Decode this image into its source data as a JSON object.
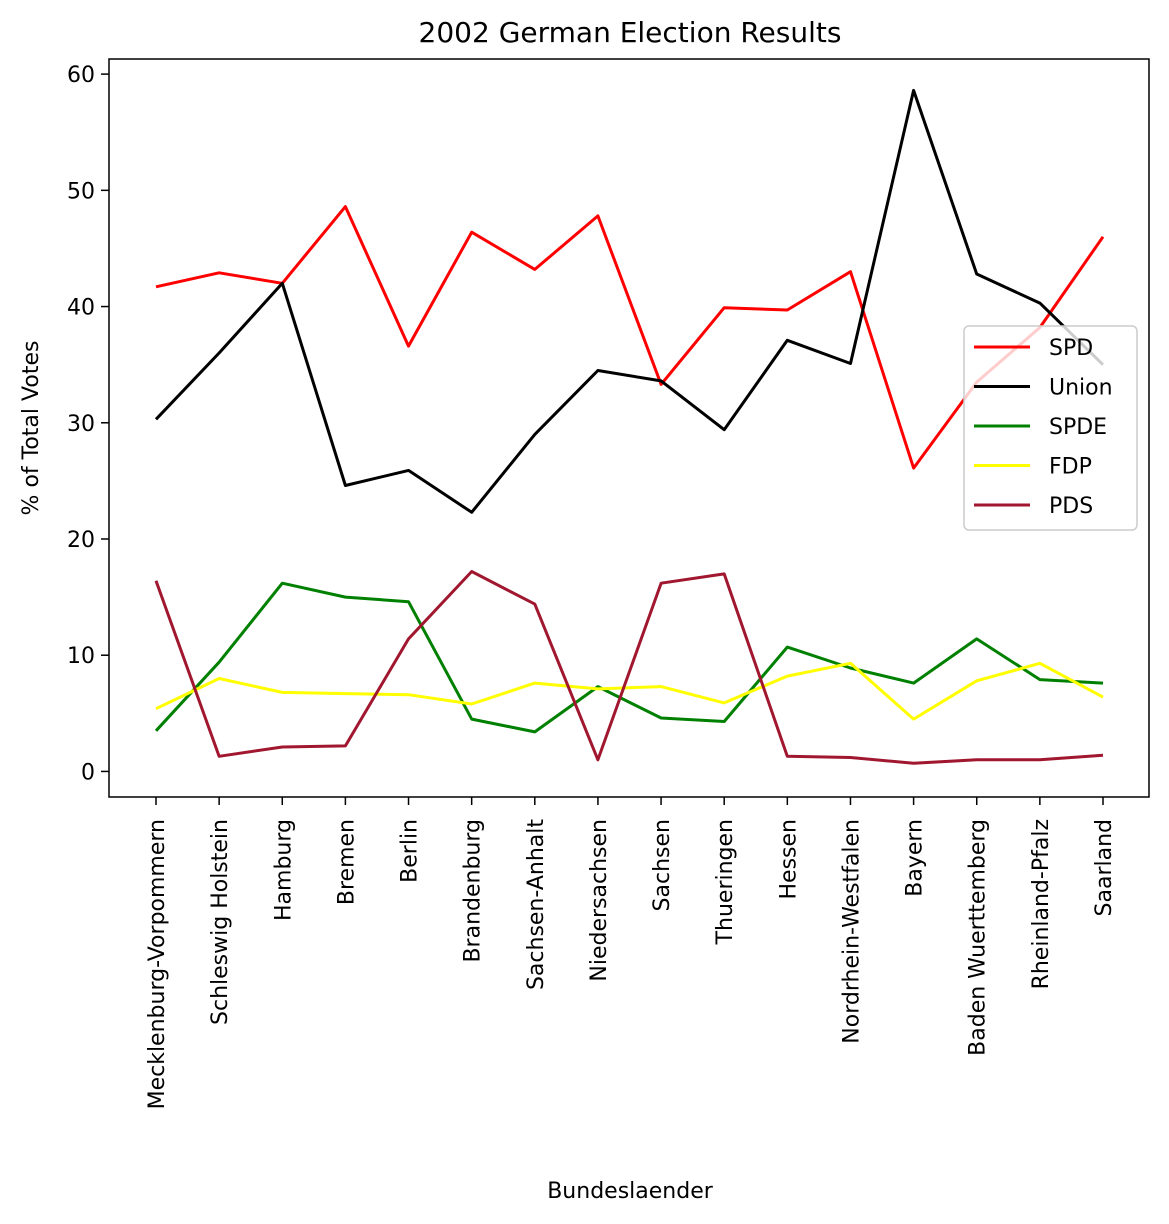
{
  "chart_data": {
    "type": "line",
    "title": "2002 German Election Results",
    "xlabel": "Bundeslaender",
    "ylabel": "% of Total Votes",
    "ylim": [
      -2.2,
      61.3
    ],
    "yticks": [
      0,
      10,
      20,
      30,
      40,
      50,
      60
    ],
    "grid": false,
    "legend_position": "center-right",
    "categories": [
      "Mecklenburg-Vorpommern",
      "Schleswig Holstein",
      "Hamburg",
      "Bremen",
      "Berlin",
      "Brandenburg",
      "Sachsen-Anhalt",
      "Niedersachsen",
      "Sachsen",
      "Thueringen",
      "Hessen",
      "Nordrhein-Westfalen",
      "Bayern",
      "Baden Wuerttemberg",
      "Rheinland-Pfalz",
      "Saarland"
    ],
    "series": [
      {
        "name": "SPD",
        "color": "#ff0000",
        "values": [
          41.7,
          42.9,
          42.0,
          48.6,
          36.6,
          46.4,
          43.2,
          47.8,
          33.3,
          39.9,
          39.7,
          43.0,
          26.1,
          33.5,
          38.2,
          46.0
        ]
      },
      {
        "name": "Union",
        "color": "#000000",
        "values": [
          30.3,
          36.0,
          42.0,
          24.6,
          25.9,
          22.3,
          29.0,
          34.5,
          33.6,
          29.4,
          37.1,
          35.1,
          58.6,
          42.8,
          40.3,
          35.0
        ]
      },
      {
        "name": "SPDE",
        "color": "#008000",
        "values": [
          3.5,
          9.4,
          16.2,
          15.0,
          14.6,
          4.5,
          3.4,
          7.3,
          4.6,
          4.3,
          10.7,
          8.9,
          7.6,
          11.4,
          7.9,
          7.6
        ]
      },
      {
        "name": "FDP",
        "color": "#ffff00",
        "values": [
          5.4,
          8.0,
          6.8,
          6.7,
          6.6,
          5.8,
          7.6,
          7.1,
          7.3,
          5.9,
          8.2,
          9.3,
          4.5,
          7.8,
          9.3,
          6.4
        ]
      },
      {
        "name": "PDS",
        "color": "#a0172f",
        "values": [
          16.4,
          1.3,
          2.1,
          2.2,
          11.4,
          17.2,
          14.4,
          1.0,
          16.2,
          17.0,
          1.3,
          1.2,
          0.7,
          1.0,
          1.0,
          1.4
        ]
      }
    ]
  }
}
